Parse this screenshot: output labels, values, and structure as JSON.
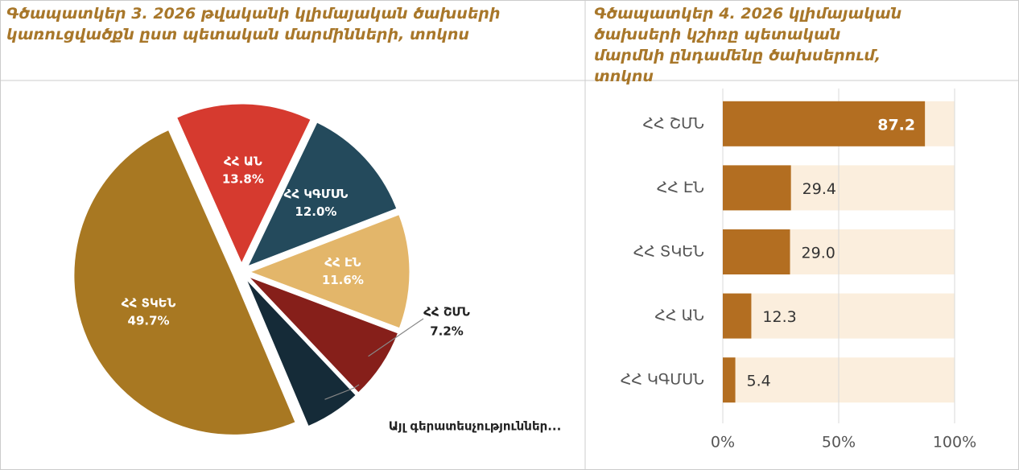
{
  "chart_data": [
    {
      "type": "pie",
      "title": "Գծապատկեր 3. 2026 թվականի կլիմայական ծախսերի կառուցվածքն ըստ պետական մարմինների, տոկոս",
      "categories": [
        "ՀՀ ԱՆ",
        "ՀՀ ԿԳՄՍՆ",
        "ՀՀ ԷՆ",
        "ՀՀ ՇՄՆ",
        "Այլ գերատեսչություններ...",
        "ՀՀ ՏԿԵՆ"
      ],
      "values": [
        13.8,
        12.0,
        11.6,
        7.2,
        5.7,
        49.7
      ],
      "value_labels": [
        "13.8%",
        "12.0%",
        "11.6%",
        "7.2%",
        null,
        "49.7%"
      ],
      "colors": [
        "#d63a2f",
        "#244a5c",
        "#e3b66a",
        "#861f1a",
        "#152b38",
        "#a87822"
      ]
    },
    {
      "type": "barh",
      "title": "Գծապատկեր 4. 2026 կլիմայական ծախսերի կշիռը պետական մարմնի ընդամենը ծախսերում, տոկոս",
      "categories": [
        "ՀՀ ՇՄՆ",
        "ՀՀ ԷՆ",
        "ՀՀ ՏԿԵՆ",
        "ՀՀ ԱՆ",
        "ՀՀ ԿԳՄՍՆ"
      ],
      "values": [
        87.2,
        29.4,
        29.0,
        12.3,
        5.4
      ],
      "value_labels": [
        "87.2",
        "29.4",
        "29.0",
        "12.3",
        "5.4"
      ],
      "color": "#b36e21",
      "track_color": "#fbeedd",
      "xlim": [
        0,
        100
      ],
      "xticks": [
        {
          "value": 0,
          "label": "0%"
        },
        {
          "value": 50,
          "label": "50%"
        },
        {
          "value": 100,
          "label": "100%"
        }
      ],
      "grid": true
    }
  ]
}
